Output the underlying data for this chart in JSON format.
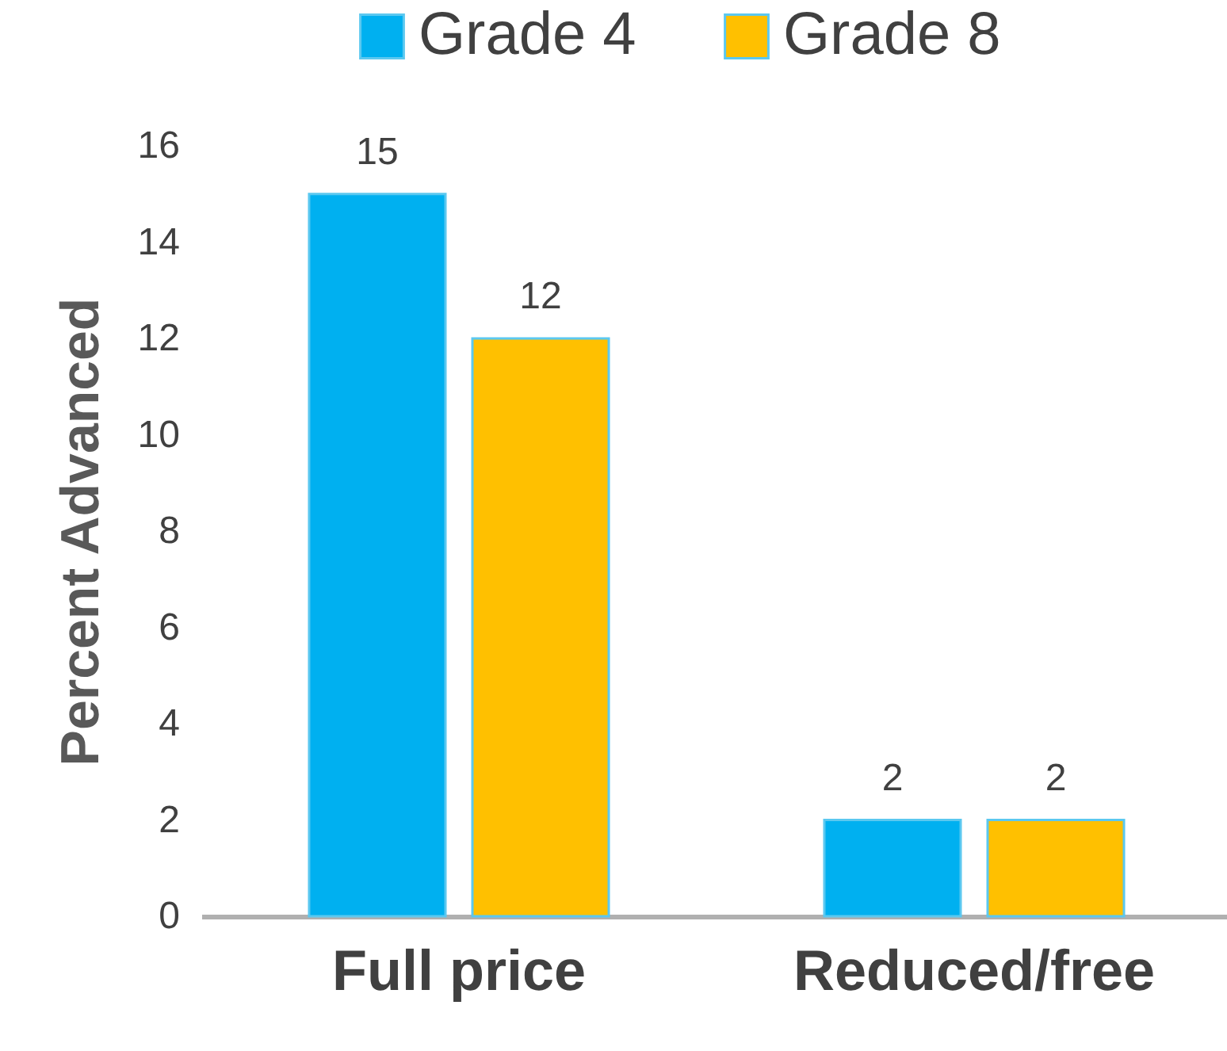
{
  "chart_data": {
    "type": "bar",
    "ylabel": "Percent Advanced",
    "categories": [
      "Full price",
      "Reduced/free"
    ],
    "series": [
      {
        "name": "Grade 4",
        "color": "#00b0f0",
        "values": [
          15,
          2
        ]
      },
      {
        "name": "Grade 8",
        "color": "#ffc000",
        "values": [
          12,
          2
        ]
      }
    ],
    "ylim": [
      0,
      16
    ],
    "yticks": [
      0,
      2,
      4,
      6,
      8,
      10,
      12,
      14,
      16
    ],
    "grid": false,
    "legend": "top",
    "data_labels": true
  }
}
